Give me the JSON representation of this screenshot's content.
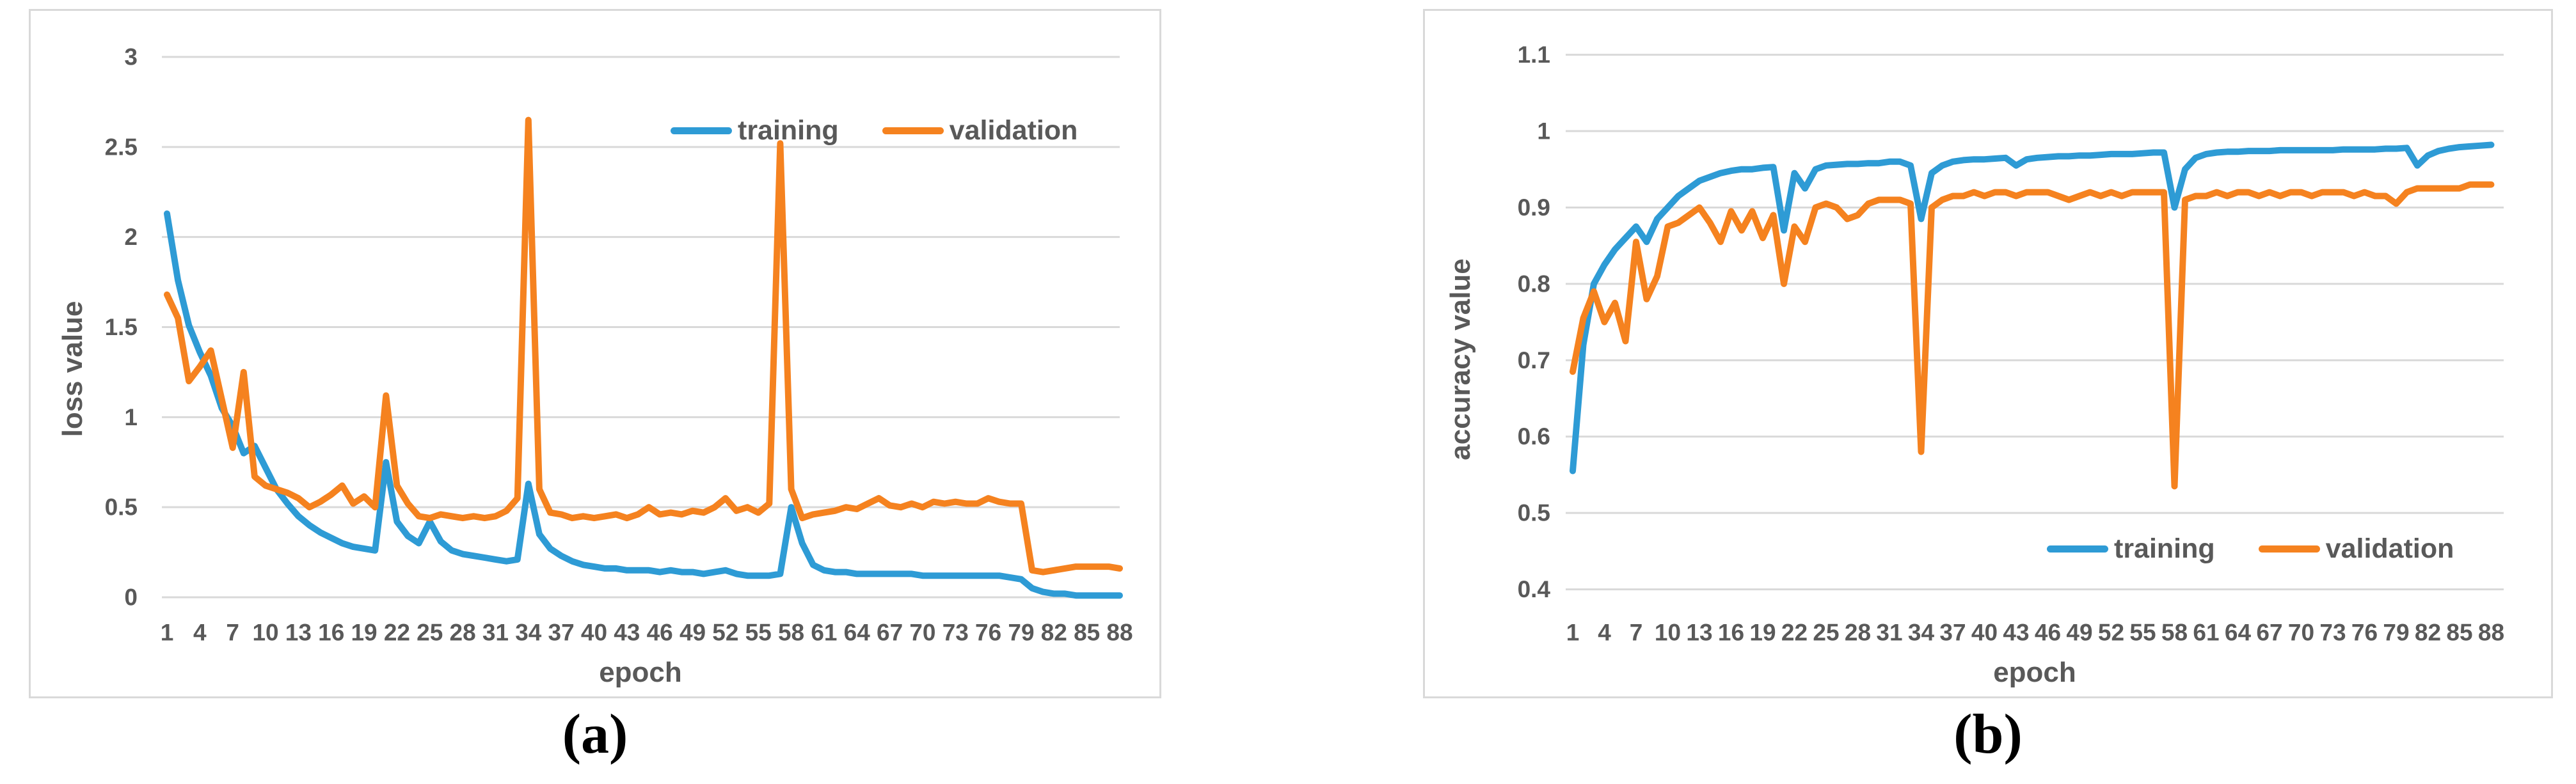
{
  "figure": {
    "caption_a": "(a)",
    "caption_b": "(b)"
  },
  "colors": {
    "training": "#2E9BD5",
    "validation": "#F5821F",
    "gridline": "#D9D9D9",
    "panel_border": "#D9D9D9",
    "axis_text": "#595959",
    "caption_text": "#000000"
  },
  "chart_data": [
    {
      "type": "line",
      "panel": "a",
      "xlabel": "epoch",
      "ylabel": "loss value",
      "x_start": 1,
      "x_end": 88,
      "ylim": [
        0,
        3
      ],
      "grid": "horizontal",
      "y_tick_labels": [
        "3",
        "2.5",
        "2",
        "1.5",
        "1",
        "0.5",
        "0"
      ],
      "y_tick_values": [
        3,
        2.5,
        2,
        1.5,
        1,
        0.5,
        0
      ],
      "x_tick_labels": [
        "1",
        "4",
        "7",
        "10",
        "13",
        "16",
        "19",
        "22",
        "25",
        "28",
        "31",
        "34",
        "37",
        "40",
        "43",
        "46",
        "49",
        "52",
        "55",
        "58",
        "61",
        "64",
        "67",
        "70",
        "73",
        "76",
        "79",
        "82",
        "85",
        "88"
      ],
      "legend_position": "inside-top-right",
      "series": [
        {
          "name": "training",
          "color": "#2E9BD5",
          "values": [
            2.13,
            1.76,
            1.51,
            1.36,
            1.23,
            1.05,
            0.95,
            0.8,
            0.84,
            0.72,
            0.6,
            0.52,
            0.45,
            0.4,
            0.36,
            0.33,
            0.3,
            0.28,
            0.27,
            0.26,
            0.75,
            0.42,
            0.34,
            0.3,
            0.42,
            0.31,
            0.26,
            0.24,
            0.23,
            0.22,
            0.21,
            0.2,
            0.21,
            0.63,
            0.35,
            0.27,
            0.23,
            0.2,
            0.18,
            0.17,
            0.16,
            0.16,
            0.15,
            0.15,
            0.15,
            0.14,
            0.15,
            0.14,
            0.14,
            0.13,
            0.14,
            0.15,
            0.13,
            0.12,
            0.12,
            0.12,
            0.13,
            0.5,
            0.3,
            0.18,
            0.15,
            0.14,
            0.14,
            0.13,
            0.13,
            0.13,
            0.13,
            0.13,
            0.13,
            0.12,
            0.12,
            0.12,
            0.12,
            0.12,
            0.12,
            0.12,
            0.12,
            0.11,
            0.1,
            0.05,
            0.03,
            0.02,
            0.02,
            0.01,
            0.01,
            0.01,
            0.01,
            0.01
          ]
        },
        {
          "name": "validation",
          "color": "#F5821F",
          "values": [
            1.68,
            1.55,
            1.2,
            1.28,
            1.37,
            1.1,
            0.83,
            1.25,
            0.67,
            0.62,
            0.6,
            0.58,
            0.55,
            0.5,
            0.53,
            0.57,
            0.62,
            0.52,
            0.56,
            0.5,
            1.12,
            0.62,
            0.52,
            0.45,
            0.44,
            0.46,
            0.45,
            0.44,
            0.45,
            0.44,
            0.45,
            0.48,
            0.55,
            2.65,
            0.6,
            0.47,
            0.46,
            0.44,
            0.45,
            0.44,
            0.45,
            0.46,
            0.44,
            0.46,
            0.5,
            0.46,
            0.47,
            0.46,
            0.48,
            0.47,
            0.5,
            0.55,
            0.48,
            0.5,
            0.47,
            0.52,
            2.52,
            0.6,
            0.44,
            0.46,
            0.47,
            0.48,
            0.5,
            0.49,
            0.52,
            0.55,
            0.51,
            0.5,
            0.52,
            0.5,
            0.53,
            0.52,
            0.53,
            0.52,
            0.52,
            0.55,
            0.53,
            0.52,
            0.52,
            0.15,
            0.14,
            0.15,
            0.16,
            0.17,
            0.17,
            0.17,
            0.17,
            0.16
          ]
        }
      ]
    },
    {
      "type": "line",
      "panel": "b",
      "xlabel": "epoch",
      "ylabel": "accuracy value",
      "x_start": 1,
      "x_end": 88,
      "ylim": [
        0.4,
        1.1
      ],
      "grid": "horizontal",
      "y_tick_labels": [
        "1.1",
        "1",
        "0.9",
        "0.8",
        "0.7",
        "0.6",
        "0.5",
        "0.4"
      ],
      "y_tick_values": [
        1.1,
        1,
        0.9,
        0.8,
        0.7,
        0.6,
        0.5,
        0.4
      ],
      "x_tick_labels": [
        "1",
        "4",
        "7",
        "10",
        "13",
        "16",
        "19",
        "22",
        "25",
        "28",
        "31",
        "34",
        "37",
        "40",
        "43",
        "46",
        "49",
        "52",
        "55",
        "58",
        "61",
        "64",
        "67",
        "70",
        "73",
        "76",
        "79",
        "82",
        "85",
        "88"
      ],
      "legend_position": "inside-bottom-right",
      "series": [
        {
          "name": "training",
          "color": "#2E9BD5",
          "values": [
            0.555,
            0.72,
            0.8,
            0.825,
            0.845,
            0.86,
            0.875,
            0.855,
            0.885,
            0.9,
            0.915,
            0.925,
            0.935,
            0.94,
            0.945,
            0.948,
            0.95,
            0.95,
            0.952,
            0.953,
            0.87,
            0.945,
            0.925,
            0.95,
            0.955,
            0.956,
            0.957,
            0.957,
            0.958,
            0.958,
            0.96,
            0.96,
            0.955,
            0.885,
            0.945,
            0.955,
            0.96,
            0.962,
            0.963,
            0.963,
            0.964,
            0.965,
            0.955,
            0.963,
            0.965,
            0.966,
            0.967,
            0.967,
            0.968,
            0.968,
            0.969,
            0.97,
            0.97,
            0.97,
            0.971,
            0.972,
            0.972,
            0.9,
            0.95,
            0.965,
            0.97,
            0.972,
            0.973,
            0.973,
            0.974,
            0.974,
            0.974,
            0.975,
            0.975,
            0.975,
            0.975,
            0.975,
            0.975,
            0.976,
            0.976,
            0.976,
            0.976,
            0.977,
            0.977,
            0.978,
            0.955,
            0.968,
            0.974,
            0.977,
            0.979,
            0.98,
            0.981,
            0.982
          ]
        },
        {
          "name": "validation",
          "color": "#F5821F",
          "values": [
            0.685,
            0.755,
            0.79,
            0.75,
            0.775,
            0.725,
            0.855,
            0.78,
            0.81,
            0.875,
            0.88,
            0.89,
            0.9,
            0.88,
            0.855,
            0.895,
            0.87,
            0.895,
            0.86,
            0.89,
            0.8,
            0.875,
            0.855,
            0.9,
            0.905,
            0.9,
            0.885,
            0.89,
            0.905,
            0.91,
            0.91,
            0.91,
            0.905,
            0.58,
            0.9,
            0.91,
            0.915,
            0.915,
            0.92,
            0.915,
            0.92,
            0.92,
            0.915,
            0.92,
            0.92,
            0.92,
            0.915,
            0.91,
            0.915,
            0.92,
            0.915,
            0.92,
            0.915,
            0.92,
            0.92,
            0.92,
            0.92,
            0.535,
            0.91,
            0.915,
            0.915,
            0.92,
            0.915,
            0.92,
            0.92,
            0.915,
            0.92,
            0.915,
            0.92,
            0.92,
            0.915,
            0.92,
            0.92,
            0.92,
            0.915,
            0.92,
            0.915,
            0.915,
            0.905,
            0.92,
            0.925,
            0.925,
            0.925,
            0.925,
            0.925,
            0.93,
            0.93,
            0.93
          ]
        }
      ]
    }
  ]
}
